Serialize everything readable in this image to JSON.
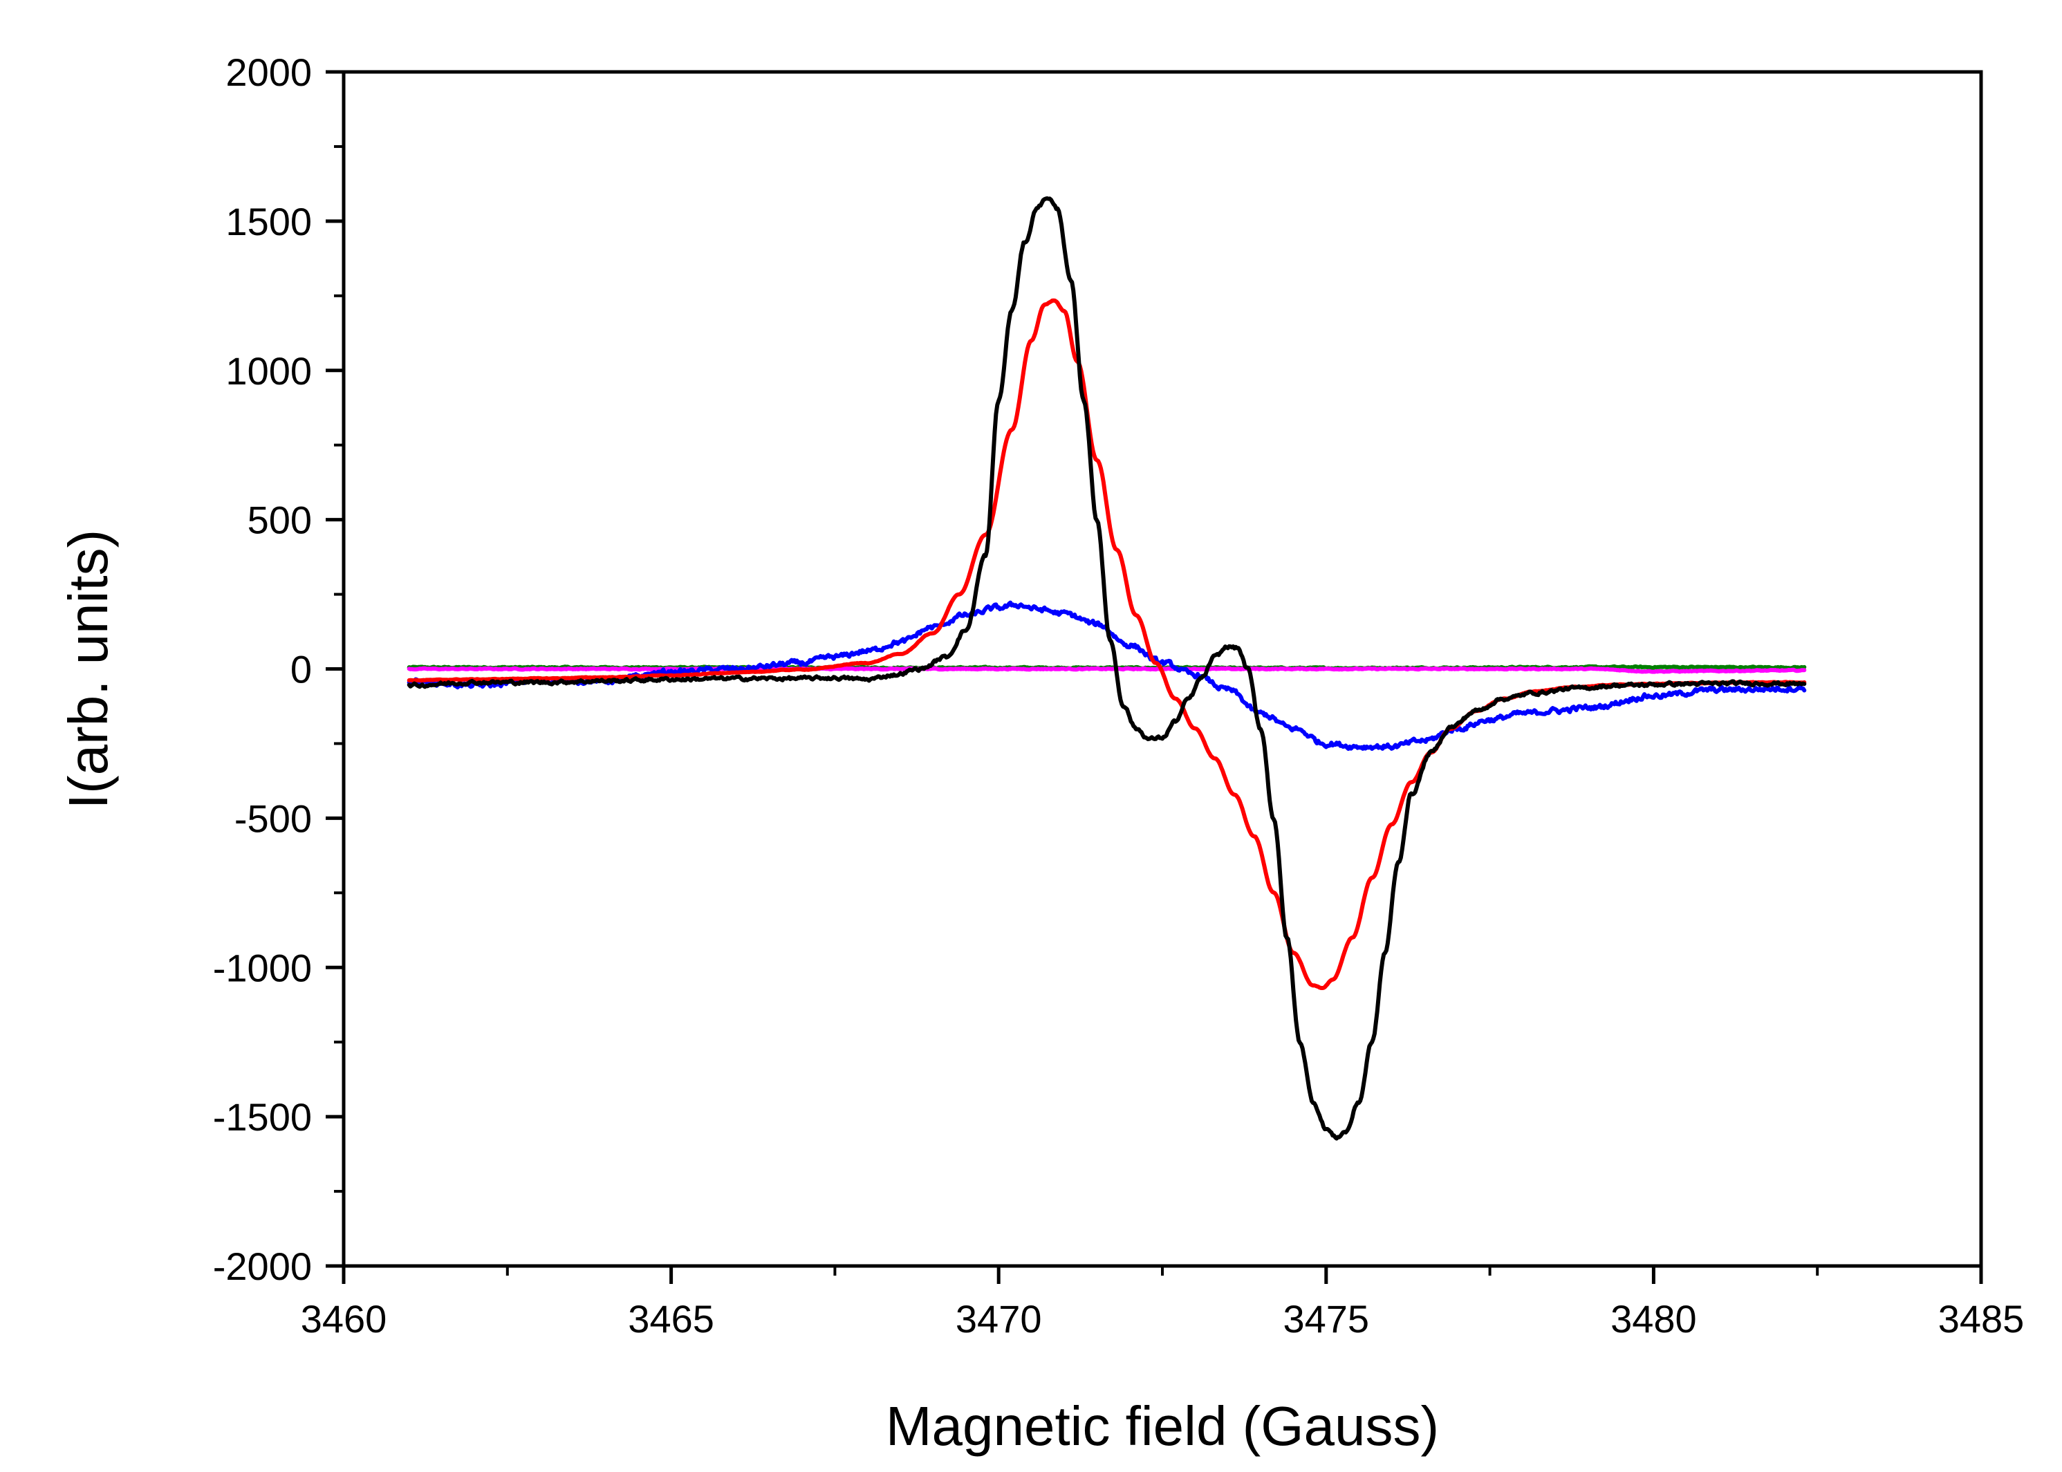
{
  "chart_data": {
    "type": "line",
    "title": "",
    "xlabel": "Magnetic field (Gauss)",
    "ylabel": "I(arb. units)",
    "xlim": [
      3460,
      3485
    ],
    "ylim": [
      -2000,
      2000
    ],
    "xticks": [
      3460,
      3465,
      3470,
      3475,
      3480,
      3485
    ],
    "yticks": [
      -2000,
      -1500,
      -1000,
      -500,
      0,
      500,
      1000,
      1500,
      2000
    ],
    "x_minor_step": 2.5,
    "y_minor_step": 250,
    "grid": false,
    "legend": "none",
    "series": [
      {
        "name": "black",
        "color": "#000000",
        "noise": 10,
        "points": [
          [
            3461.0,
            -55
          ],
          [
            3462.0,
            -45
          ],
          [
            3463.0,
            -45
          ],
          [
            3464.0,
            -40
          ],
          [
            3465.0,
            -35
          ],
          [
            3466.0,
            -32
          ],
          [
            3467.0,
            -32
          ],
          [
            3467.5,
            -30
          ],
          [
            3468.0,
            -35
          ],
          [
            3468.4,
            -20
          ],
          [
            3468.8,
            0
          ],
          [
            3469.2,
            40
          ],
          [
            3469.5,
            130
          ],
          [
            3469.8,
            380
          ],
          [
            3470.0,
            900
          ],
          [
            3470.2,
            1200
          ],
          [
            3470.4,
            1430
          ],
          [
            3470.6,
            1550
          ],
          [
            3470.75,
            1580
          ],
          [
            3470.9,
            1540
          ],
          [
            3471.1,
            1300
          ],
          [
            3471.3,
            900
          ],
          [
            3471.5,
            500
          ],
          [
            3471.7,
            100
          ],
          [
            3471.9,
            -120
          ],
          [
            3472.1,
            -200
          ],
          [
            3472.3,
            -235
          ],
          [
            3472.5,
            -230
          ],
          [
            3472.7,
            -175
          ],
          [
            3472.9,
            -100
          ],
          [
            3473.1,
            -30
          ],
          [
            3473.3,
            40
          ],
          [
            3473.5,
            75
          ],
          [
            3473.65,
            70
          ],
          [
            3473.8,
            0
          ],
          [
            3474.0,
            -200
          ],
          [
            3474.2,
            -500
          ],
          [
            3474.4,
            -900
          ],
          [
            3474.6,
            -1250
          ],
          [
            3474.8,
            -1450
          ],
          [
            3475.0,
            -1540
          ],
          [
            3475.15,
            -1570
          ],
          [
            3475.3,
            -1550
          ],
          [
            3475.5,
            -1450
          ],
          [
            3475.7,
            -1250
          ],
          [
            3475.9,
            -950
          ],
          [
            3476.1,
            -650
          ],
          [
            3476.3,
            -420
          ],
          [
            3476.6,
            -280
          ],
          [
            3476.9,
            -195
          ],
          [
            3477.3,
            -140
          ],
          [
            3477.7,
            -100
          ],
          [
            3478.2,
            -80
          ],
          [
            3478.8,
            -65
          ],
          [
            3479.5,
            -55
          ],
          [
            3480.5,
            -50
          ],
          [
            3481.5,
            -48
          ],
          [
            3482.3,
            -50
          ]
        ]
      },
      {
        "name": "red",
        "color": "#ff0000",
        "noise": 2,
        "points": [
          [
            3461.0,
            -38
          ],
          [
            3462.0,
            -35
          ],
          [
            3463.0,
            -32
          ],
          [
            3464.0,
            -28
          ],
          [
            3465.0,
            -22
          ],
          [
            3466.0,
            -12
          ],
          [
            3467.0,
            -2
          ],
          [
            3468.0,
            20
          ],
          [
            3468.5,
            50
          ],
          [
            3469.0,
            120
          ],
          [
            3469.4,
            250
          ],
          [
            3469.8,
            450
          ],
          [
            3470.2,
            800
          ],
          [
            3470.5,
            1100
          ],
          [
            3470.7,
            1220
          ],
          [
            3470.85,
            1235
          ],
          [
            3471.0,
            1200
          ],
          [
            3471.2,
            1030
          ],
          [
            3471.5,
            700
          ],
          [
            3471.8,
            400
          ],
          [
            3472.1,
            180
          ],
          [
            3472.4,
            20
          ],
          [
            3472.7,
            -100
          ],
          [
            3473.0,
            -200
          ],
          [
            3473.3,
            -300
          ],
          [
            3473.6,
            -420
          ],
          [
            3473.9,
            -560
          ],
          [
            3474.2,
            -750
          ],
          [
            3474.5,
            -950
          ],
          [
            3474.8,
            -1060
          ],
          [
            3474.95,
            -1070
          ],
          [
            3475.1,
            -1040
          ],
          [
            3475.4,
            -900
          ],
          [
            3475.7,
            -700
          ],
          [
            3476.0,
            -520
          ],
          [
            3476.3,
            -380
          ],
          [
            3476.6,
            -280
          ],
          [
            3476.9,
            -200
          ],
          [
            3477.3,
            -140
          ],
          [
            3477.7,
            -100
          ],
          [
            3478.2,
            -75
          ],
          [
            3478.8,
            -60
          ],
          [
            3479.5,
            -52
          ],
          [
            3480.5,
            -48
          ],
          [
            3481.5,
            -45
          ],
          [
            3482.3,
            -45
          ]
        ]
      },
      {
        "name": "blue",
        "color": "#0000ff",
        "noise": 16,
        "points": [
          [
            3461.0,
            -40
          ],
          [
            3462.0,
            -55
          ],
          [
            3463.0,
            -40
          ],
          [
            3464.0,
            -40
          ],
          [
            3465.0,
            -10
          ],
          [
            3466.0,
            0
          ],
          [
            3467.0,
            20
          ],
          [
            3467.5,
            40
          ],
          [
            3468.0,
            60
          ],
          [
            3468.5,
            90
          ],
          [
            3469.0,
            140
          ],
          [
            3469.5,
            180
          ],
          [
            3470.0,
            205
          ],
          [
            3470.3,
            215
          ],
          [
            3470.6,
            200
          ],
          [
            3471.0,
            185
          ],
          [
            3471.5,
            150
          ],
          [
            3472.0,
            80
          ],
          [
            3472.5,
            20
          ],
          [
            3473.0,
            -20
          ],
          [
            3473.5,
            -70
          ],
          [
            3474.0,
            -150
          ],
          [
            3474.5,
            -200
          ],
          [
            3475.0,
            -250
          ],
          [
            3475.5,
            -260
          ],
          [
            3476.0,
            -260
          ],
          [
            3476.5,
            -240
          ],
          [
            3477.0,
            -200
          ],
          [
            3477.5,
            -170
          ],
          [
            3478.0,
            -150
          ],
          [
            3478.5,
            -140
          ],
          [
            3479.0,
            -130
          ],
          [
            3480.0,
            -90
          ],
          [
            3481.0,
            -70
          ],
          [
            3482.3,
            -65
          ]
        ]
      },
      {
        "name": "magenta",
        "color": "#ff00ff",
        "noise": 3,
        "points": [
          [
            3461.0,
            0
          ],
          [
            3470.0,
            0
          ],
          [
            3475.0,
            0
          ],
          [
            3479.0,
            0
          ],
          [
            3480.0,
            -8
          ],
          [
            3482.3,
            -5
          ]
        ]
      },
      {
        "name": "green",
        "color": "#008000",
        "noise": 4,
        "points": [
          [
            3461.0,
            5
          ],
          [
            3470.0,
            4
          ],
          [
            3475.0,
            3
          ],
          [
            3480.0,
            6
          ],
          [
            3482.3,
            5
          ]
        ]
      }
    ]
  }
}
